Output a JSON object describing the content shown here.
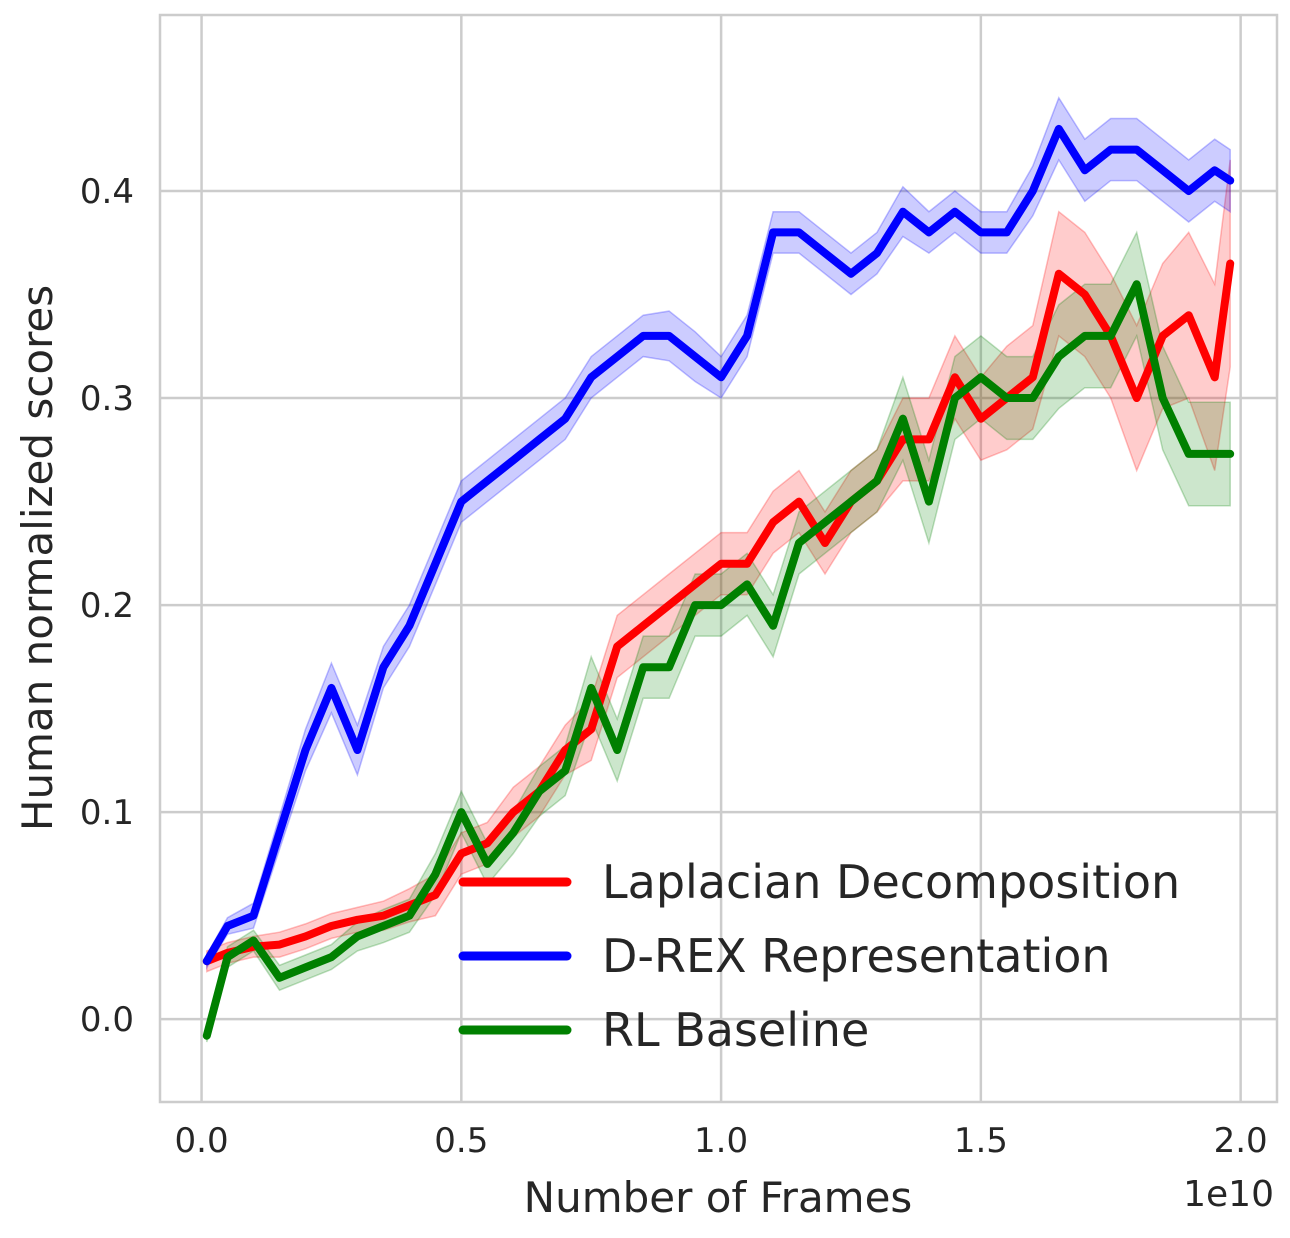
{
  "chart_data": {
    "type": "line",
    "xlabel": "Number of Frames",
    "ylabel": "Human normalized scores",
    "x_offset_label": "1e10",
    "xlim": [
      -0.08,
      2.07
    ],
    "ylim": [
      -0.04,
      0.485
    ],
    "x_ticks": [
      0.0,
      0.5,
      1.0,
      1.5,
      2.0
    ],
    "x_tick_labels": [
      "0.0",
      "0.5",
      "1.0",
      "1.5",
      "2.0"
    ],
    "y_ticks": [
      0.0,
      0.1,
      0.2,
      0.3,
      0.4
    ],
    "y_tick_labels": [
      "0.0",
      "0.1",
      "0.2",
      "0.3",
      "0.4"
    ],
    "grid": true,
    "legend_position": "lower-right",
    "series": [
      {
        "name": "Laplacian Decomposition",
        "color": "#ff0000",
        "x": [
          0.01,
          0.05,
          0.1,
          0.15,
          0.2,
          0.25,
          0.3,
          0.35,
          0.4,
          0.45,
          0.5,
          0.55,
          0.6,
          0.65,
          0.7,
          0.75,
          0.8,
          0.85,
          0.9,
          0.95,
          1.0,
          1.05,
          1.1,
          1.15,
          1.2,
          1.25,
          1.3,
          1.35,
          1.4,
          1.45,
          1.5,
          1.55,
          1.6,
          1.65,
          1.7,
          1.75,
          1.8,
          1.85,
          1.9,
          1.95,
          1.98
        ],
        "y": [
          0.028,
          0.032,
          0.035,
          0.036,
          0.04,
          0.045,
          0.048,
          0.05,
          0.055,
          0.06,
          0.08,
          0.085,
          0.1,
          0.11,
          0.13,
          0.14,
          0.18,
          0.19,
          0.2,
          0.21,
          0.22,
          0.22,
          0.24,
          0.25,
          0.23,
          0.25,
          0.26,
          0.28,
          0.28,
          0.31,
          0.29,
          0.3,
          0.31,
          0.36,
          0.35,
          0.33,
          0.3,
          0.33,
          0.34,
          0.31,
          0.365
        ],
        "band": [
          0.005,
          0.005,
          0.005,
          0.006,
          0.006,
          0.006,
          0.006,
          0.007,
          0.008,
          0.01,
          0.01,
          0.01,
          0.012,
          0.012,
          0.012,
          0.015,
          0.015,
          0.015,
          0.015,
          0.015,
          0.015,
          0.015,
          0.015,
          0.015,
          0.015,
          0.015,
          0.015,
          0.02,
          0.02,
          0.02,
          0.02,
          0.025,
          0.025,
          0.03,
          0.03,
          0.03,
          0.035,
          0.035,
          0.04,
          0.045,
          0.05
        ]
      },
      {
        "name": "D-REX Representation",
        "color": "#0000ff",
        "x": [
          0.01,
          0.05,
          0.1,
          0.15,
          0.2,
          0.25,
          0.3,
          0.35,
          0.4,
          0.45,
          0.5,
          0.55,
          0.6,
          0.65,
          0.7,
          0.75,
          0.8,
          0.85,
          0.9,
          0.95,
          1.0,
          1.05,
          1.1,
          1.15,
          1.2,
          1.25,
          1.3,
          1.35,
          1.4,
          1.45,
          1.5,
          1.55,
          1.6,
          1.65,
          1.7,
          1.75,
          1.8,
          1.85,
          1.9,
          1.95,
          1.98
        ],
        "y": [
          0.028,
          0.045,
          0.05,
          0.09,
          0.13,
          0.16,
          0.13,
          0.17,
          0.19,
          0.22,
          0.25,
          0.26,
          0.27,
          0.28,
          0.29,
          0.31,
          0.32,
          0.33,
          0.33,
          0.32,
          0.31,
          0.33,
          0.38,
          0.38,
          0.37,
          0.36,
          0.37,
          0.39,
          0.38,
          0.39,
          0.38,
          0.38,
          0.4,
          0.43,
          0.41,
          0.42,
          0.42,
          0.41,
          0.4,
          0.41,
          0.405
        ],
        "band": [
          0.003,
          0.004,
          0.006,
          0.008,
          0.01,
          0.012,
          0.012,
          0.01,
          0.01,
          0.01,
          0.01,
          0.01,
          0.01,
          0.01,
          0.01,
          0.01,
          0.01,
          0.01,
          0.012,
          0.012,
          0.01,
          0.01,
          0.01,
          0.01,
          0.01,
          0.01,
          0.01,
          0.012,
          0.01,
          0.01,
          0.01,
          0.01,
          0.012,
          0.015,
          0.015,
          0.015,
          0.015,
          0.015,
          0.015,
          0.015,
          0.015
        ]
      },
      {
        "name": "RL Baseline",
        "color": "#008000",
        "x": [
          0.01,
          0.05,
          0.1,
          0.15,
          0.2,
          0.25,
          0.3,
          0.35,
          0.4,
          0.45,
          0.5,
          0.55,
          0.6,
          0.65,
          0.7,
          0.75,
          0.8,
          0.85,
          0.9,
          0.95,
          1.0,
          1.05,
          1.1,
          1.15,
          1.2,
          1.25,
          1.3,
          1.35,
          1.4,
          1.45,
          1.5,
          1.55,
          1.6,
          1.65,
          1.7,
          1.75,
          1.8,
          1.85,
          1.9,
          1.95,
          1.98
        ],
        "y": [
          -0.008,
          0.03,
          0.038,
          0.02,
          0.025,
          0.03,
          0.04,
          0.045,
          0.05,
          0.07,
          0.1,
          0.075,
          0.09,
          0.11,
          0.12,
          0.16,
          0.13,
          0.17,
          0.17,
          0.2,
          0.2,
          0.21,
          0.19,
          0.23,
          0.24,
          0.25,
          0.26,
          0.29,
          0.25,
          0.3,
          0.31,
          0.3,
          0.3,
          0.32,
          0.33,
          0.33,
          0.355,
          0.3,
          0.273,
          0.273,
          0.273
        ],
        "band": [
          0.003,
          0.005,
          0.005,
          0.006,
          0.006,
          0.006,
          0.007,
          0.008,
          0.008,
          0.01,
          0.01,
          0.01,
          0.01,
          0.012,
          0.012,
          0.015,
          0.015,
          0.015,
          0.015,
          0.015,
          0.015,
          0.015,
          0.015,
          0.015,
          0.015,
          0.015,
          0.015,
          0.02,
          0.02,
          0.02,
          0.02,
          0.02,
          0.02,
          0.025,
          0.025,
          0.025,
          0.025,
          0.025,
          0.025,
          0.025,
          0.025
        ]
      }
    ]
  }
}
